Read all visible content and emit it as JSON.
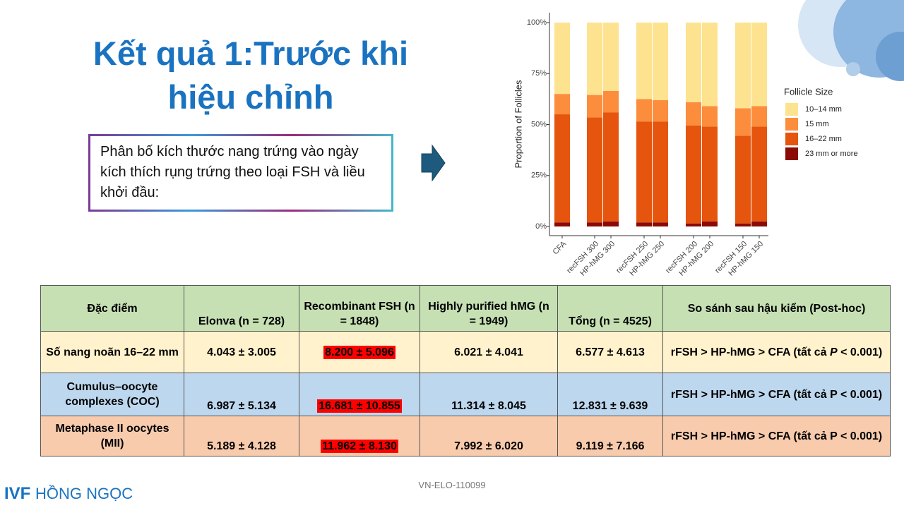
{
  "title": "Kết quả 1:Trước khi hiệu chỉnh",
  "description": "Phân bố kích thước nang trứng vào ngày kích thích rụng trứng theo loại FSH và liều khởi đầu:",
  "chart_data": {
    "type": "stacked_bar",
    "y_label": "Proportion of Follicles",
    "legend_title": "Follicle Size",
    "categories": [
      "CFA",
      "recFSH 300",
      "HP-hMG 300",
      "recFSH 250",
      "HP-hMG 250",
      "recFSH 200",
      "HP-hMG 200",
      "recFSH 150",
      "HP-hMG 150"
    ],
    "series": [
      {
        "name": "23 mm or more",
        "color": "#8b0a06",
        "values": [
          2,
          2,
          2.5,
          2,
          2,
          1.5,
          2.5,
          1.5,
          2.5
        ]
      },
      {
        "name": "16–22 mm",
        "color": "#e6550d",
        "values": [
          53,
          51.5,
          53.5,
          49.5,
          49.5,
          48,
          46.5,
          43,
          46.5
        ]
      },
      {
        "name": "15 mm",
        "color": "#fb8d3d",
        "values": [
          10,
          11,
          10.5,
          11,
          10.5,
          11.5,
          10,
          13.5,
          10
        ]
      },
      {
        "name": "10–14 mm",
        "color": "#fde38f",
        "values": [
          35,
          35.5,
          33.5,
          37.5,
          38,
          39,
          41,
          42,
          41
        ]
      }
    ],
    "ylim": [
      0,
      100
    ],
    "yticks": [
      {
        "value": 0,
        "label": "0%"
      },
      {
        "value": 25,
        "label": "25%"
      },
      {
        "value": 50,
        "label": "50%"
      },
      {
        "value": 75,
        "label": "75%"
      },
      {
        "value": 100,
        "label": "100%"
      }
    ]
  },
  "table": {
    "header": [
      "Đặc điểm",
      "Elonva (n = 728)",
      "Recombinant FSH (n = 1848)",
      "Highly purified hMG (n = 1949)",
      "Tổng (n = 4525)",
      "So sánh sau hậu kiểm (Post-hoc)"
    ],
    "rows": [
      [
        "Số nang noãn 16–22 mm",
        "4.043 ± 3.005",
        "8.200 ± 5.096",
        "6.021 ± 4.041",
        "6.577 ± 4.613",
        [
          "rFSH > HP-hMG > CFA (tất cả ",
          "P",
          " < 0.001)"
        ]
      ],
      [
        "Cumulus–oocyte complexes (COC)",
        "6.987 ± 5.134",
        "16.681 ± 10.855",
        "11.314 ± 8.045",
        "12.831 ± 9.639",
        "rFSH > HP-hMG > CFA (tất cả P < 0.001)"
      ],
      [
        "Metaphase II oocytes (MII)",
        "5.189 ± 4.128",
        "11.962 ± 8.130",
        "7.992 ± 6.020",
        "9.119 ± 7.166",
        "rFSH > HP-hMG > CFA (tất cả P < 0.001)"
      ]
    ]
  },
  "footer_code": "VN-ELO-110099",
  "logo": {
    "ivf": "IVF",
    "name": "HỒNG NGỌC"
  }
}
